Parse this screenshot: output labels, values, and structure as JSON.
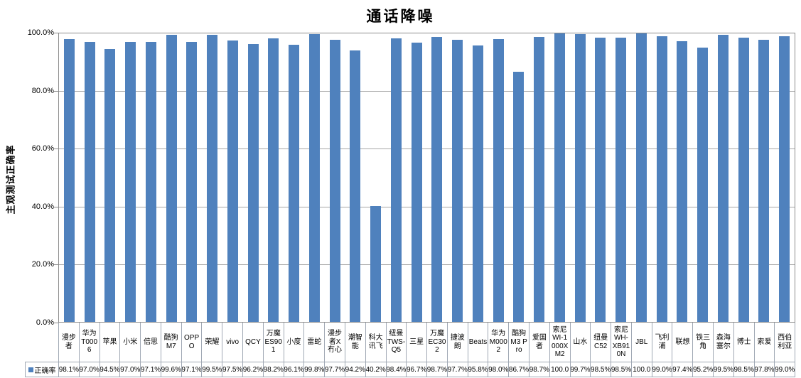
{
  "chart_data": {
    "type": "bar",
    "title": "通话降噪",
    "ylabel": "主观测试正确率",
    "xlabel": "",
    "legend_label": "正确率",
    "legend_position": "bottom-table-left",
    "grid": true,
    "ylim": [
      0,
      100
    ],
    "y_ticks": [
      "0.0%",
      "20.0%",
      "40.0%",
      "60.0%",
      "80.0%",
      "100.0%"
    ],
    "bar_color": "#4f81bd",
    "categories": [
      "漫步者",
      "华为T0006",
      "苹果",
      "小米",
      "倍思",
      "酷狗M7",
      "OPPO",
      "荣耀",
      "vivo",
      "QCY",
      "万魔ES901",
      "小度",
      "雷蛇",
      "漫步者X冇心",
      "潮智能",
      "科大讯飞",
      "纽曼TWS-Q5",
      "三星",
      "万魔EC302",
      "捷波朗",
      "Beats",
      "华为M0002",
      "酷狗M3 Pro",
      "爱国者",
      "索尼WI-1000XM2",
      "山水",
      "纽曼C52",
      "索尼WH-XB910N",
      "JBL",
      "飞利浦",
      "联想",
      "铁三角",
      "森海塞尔",
      "博士",
      "索爱",
      "西伯利亚"
    ],
    "series": [
      {
        "name": "正确率",
        "values": [
          98.1,
          97.0,
          94.5,
          97.0,
          97.1,
          99.6,
          97.1,
          99.5,
          97.5,
          96.2,
          98.2,
          96.1,
          99.8,
          97.7,
          94.2,
          40.2,
          98.4,
          96.7,
          98.7,
          97.7,
          95.8,
          98.0,
          86.7,
          98.7,
          100.0,
          99.7,
          98.5,
          98.5,
          100.0,
          99.0,
          97.4,
          95.2,
          99.5,
          98.5,
          97.8,
          99.0
        ],
        "display_values": [
          "98.1%",
          "97.0%",
          "94.5%",
          "97.0%",
          "97.1%",
          "99.6%",
          "97.1%",
          "99.5%",
          "97.5%",
          "96.2%",
          "98.2%",
          "96.1%",
          "99.8%",
          "97.7%",
          "94.2%",
          "40.2%",
          "98.4%",
          "96.7%",
          "98.7%",
          "97.7%",
          "95.8%",
          "98.0%",
          "86.7%",
          "98.7%",
          "100.0",
          "99.7%",
          "98.5%",
          "98.5%",
          "100.0",
          "99.0%",
          "97.4%",
          "95.2%",
          "99.5%",
          "98.5%",
          "97.8%",
          "99.0%"
        ]
      }
    ]
  }
}
